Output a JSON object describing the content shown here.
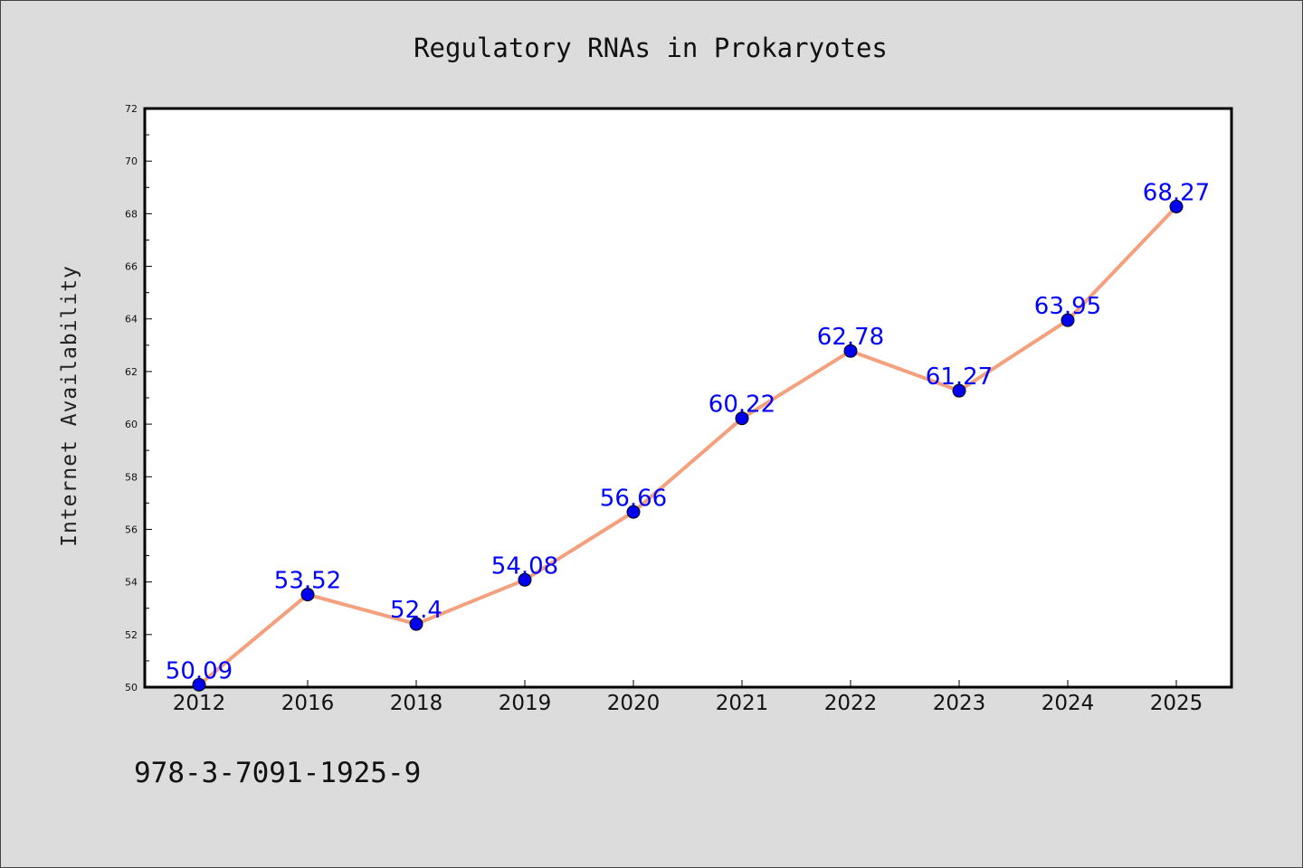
{
  "chart_data": {
    "type": "line",
    "title": "Regulatory RNAs in Prokaryotes",
    "xlabel": "",
    "ylabel": "Internet Availability",
    "categories": [
      "2012",
      "2016",
      "2018",
      "2019",
      "2020",
      "2021",
      "2022",
      "2023",
      "2024",
      "2025"
    ],
    "series": [
      {
        "values": [
          50.09,
          53.52,
          52.4,
          54.08,
          56.66,
          60.22,
          62.78,
          61.27,
          63.95,
          68.27
        ],
        "labels": [
          "50.09",
          "53.52",
          "52.4",
          "54.08",
          "56.66",
          "60.22",
          "62.78",
          "61.27",
          "63.95",
          "68.27"
        ],
        "line_color": "#f4a07c",
        "marker_color": "#0000ee"
      }
    ],
    "ylim": [
      50,
      72
    ],
    "yticks": [
      "50",
      "52",
      "54",
      "56",
      "58",
      "60",
      "62",
      "64",
      "66",
      "68",
      "70",
      "72"
    ],
    "grid": false,
    "label_color": "#0000ff"
  },
  "footer": {
    "isbn": "978-3-7091-1925-9"
  }
}
